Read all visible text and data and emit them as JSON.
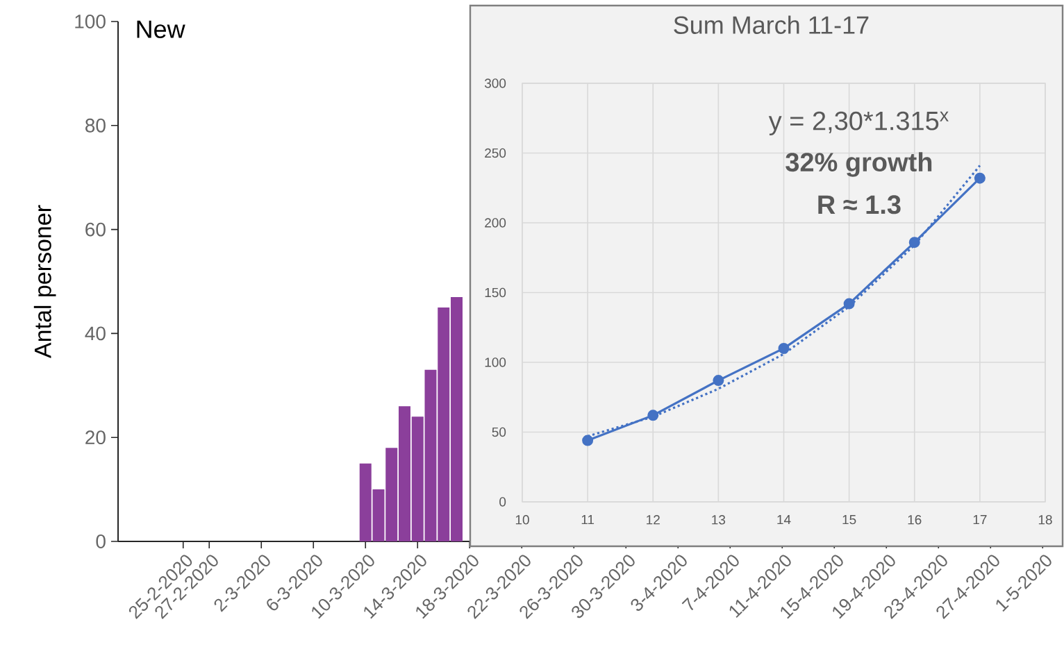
{
  "chart_data": [
    {
      "type": "bar",
      "title": "New",
      "ylabel": "Antal personer",
      "color": "#8b3f9b",
      "x": [
        "2020-03-10",
        "2020-03-11",
        "2020-03-12",
        "2020-03-13",
        "2020-03-14",
        "2020-03-15",
        "2020-03-16",
        "2020-03-17"
      ],
      "values": [
        15,
        10,
        18,
        26,
        24,
        33,
        45,
        47
      ],
      "xlim": [
        "2020-02-20",
        "2020-05-02"
      ],
      "xticks": [
        {
          "value": "2020-02-25",
          "label": "25-2-2020"
        },
        {
          "value": "2020-02-27",
          "label": "27-2-2020"
        },
        {
          "value": "2020-03-02",
          "label": "2-3-2020"
        },
        {
          "value": "2020-03-06",
          "label": "6-3-2020"
        },
        {
          "value": "2020-03-10",
          "label": "10-3-2020"
        },
        {
          "value": "2020-03-14",
          "label": "14-3-2020"
        },
        {
          "value": "2020-03-18",
          "label": "18-3-2020"
        },
        {
          "value": "2020-03-22",
          "label": "22-3-2020"
        },
        {
          "value": "2020-03-26",
          "label": "26-3-2020"
        },
        {
          "value": "2020-03-30",
          "label": "30-3-2020"
        },
        {
          "value": "2020-04-03",
          "label": "3-4-2020"
        },
        {
          "value": "2020-04-07",
          "label": "7-4-2020"
        },
        {
          "value": "2020-04-11",
          "label": "11-4-2020"
        },
        {
          "value": "2020-04-15",
          "label": "15-4-2020"
        },
        {
          "value": "2020-04-19",
          "label": "19-4-2020"
        },
        {
          "value": "2020-04-23",
          "label": "23-4-2020"
        },
        {
          "value": "2020-04-27",
          "label": "27-4-2020"
        },
        {
          "value": "2020-05-01",
          "label": "1-5-2020"
        }
      ],
      "ylim": [
        0,
        100
      ],
      "yticks": [
        0,
        20,
        40,
        60,
        80,
        100
      ]
    },
    {
      "type": "line",
      "title": "Sum March 11-17",
      "series": [
        {
          "color": "#4472c4",
          "x": [
            11,
            12,
            13,
            14,
            15,
            16,
            17
          ],
          "values": [
            44,
            62,
            87,
            110,
            142,
            186,
            232
          ],
          "marker": "circle",
          "line_style": "solid"
        },
        {
          "color": "#4472c4",
          "x": [
            11,
            12,
            13,
            14,
            15,
            16,
            17
          ],
          "values": [
            47,
            61,
            81,
            106,
            140,
            184,
            241
          ],
          "marker": "none",
          "line_style": "dotted"
        }
      ],
      "xlim": [
        10,
        18
      ],
      "xticks": [
        10,
        11,
        12,
        13,
        14,
        15,
        16,
        17,
        18
      ],
      "ylim": [
        0,
        300
      ],
      "yticks": [
        0,
        50,
        100,
        150,
        200,
        250,
        300
      ],
      "grid": true,
      "annotations": [
        "y = 2,30*1.315$^{x}$",
        "32% growth",
        "R ≈  1.3"
      ]
    }
  ]
}
